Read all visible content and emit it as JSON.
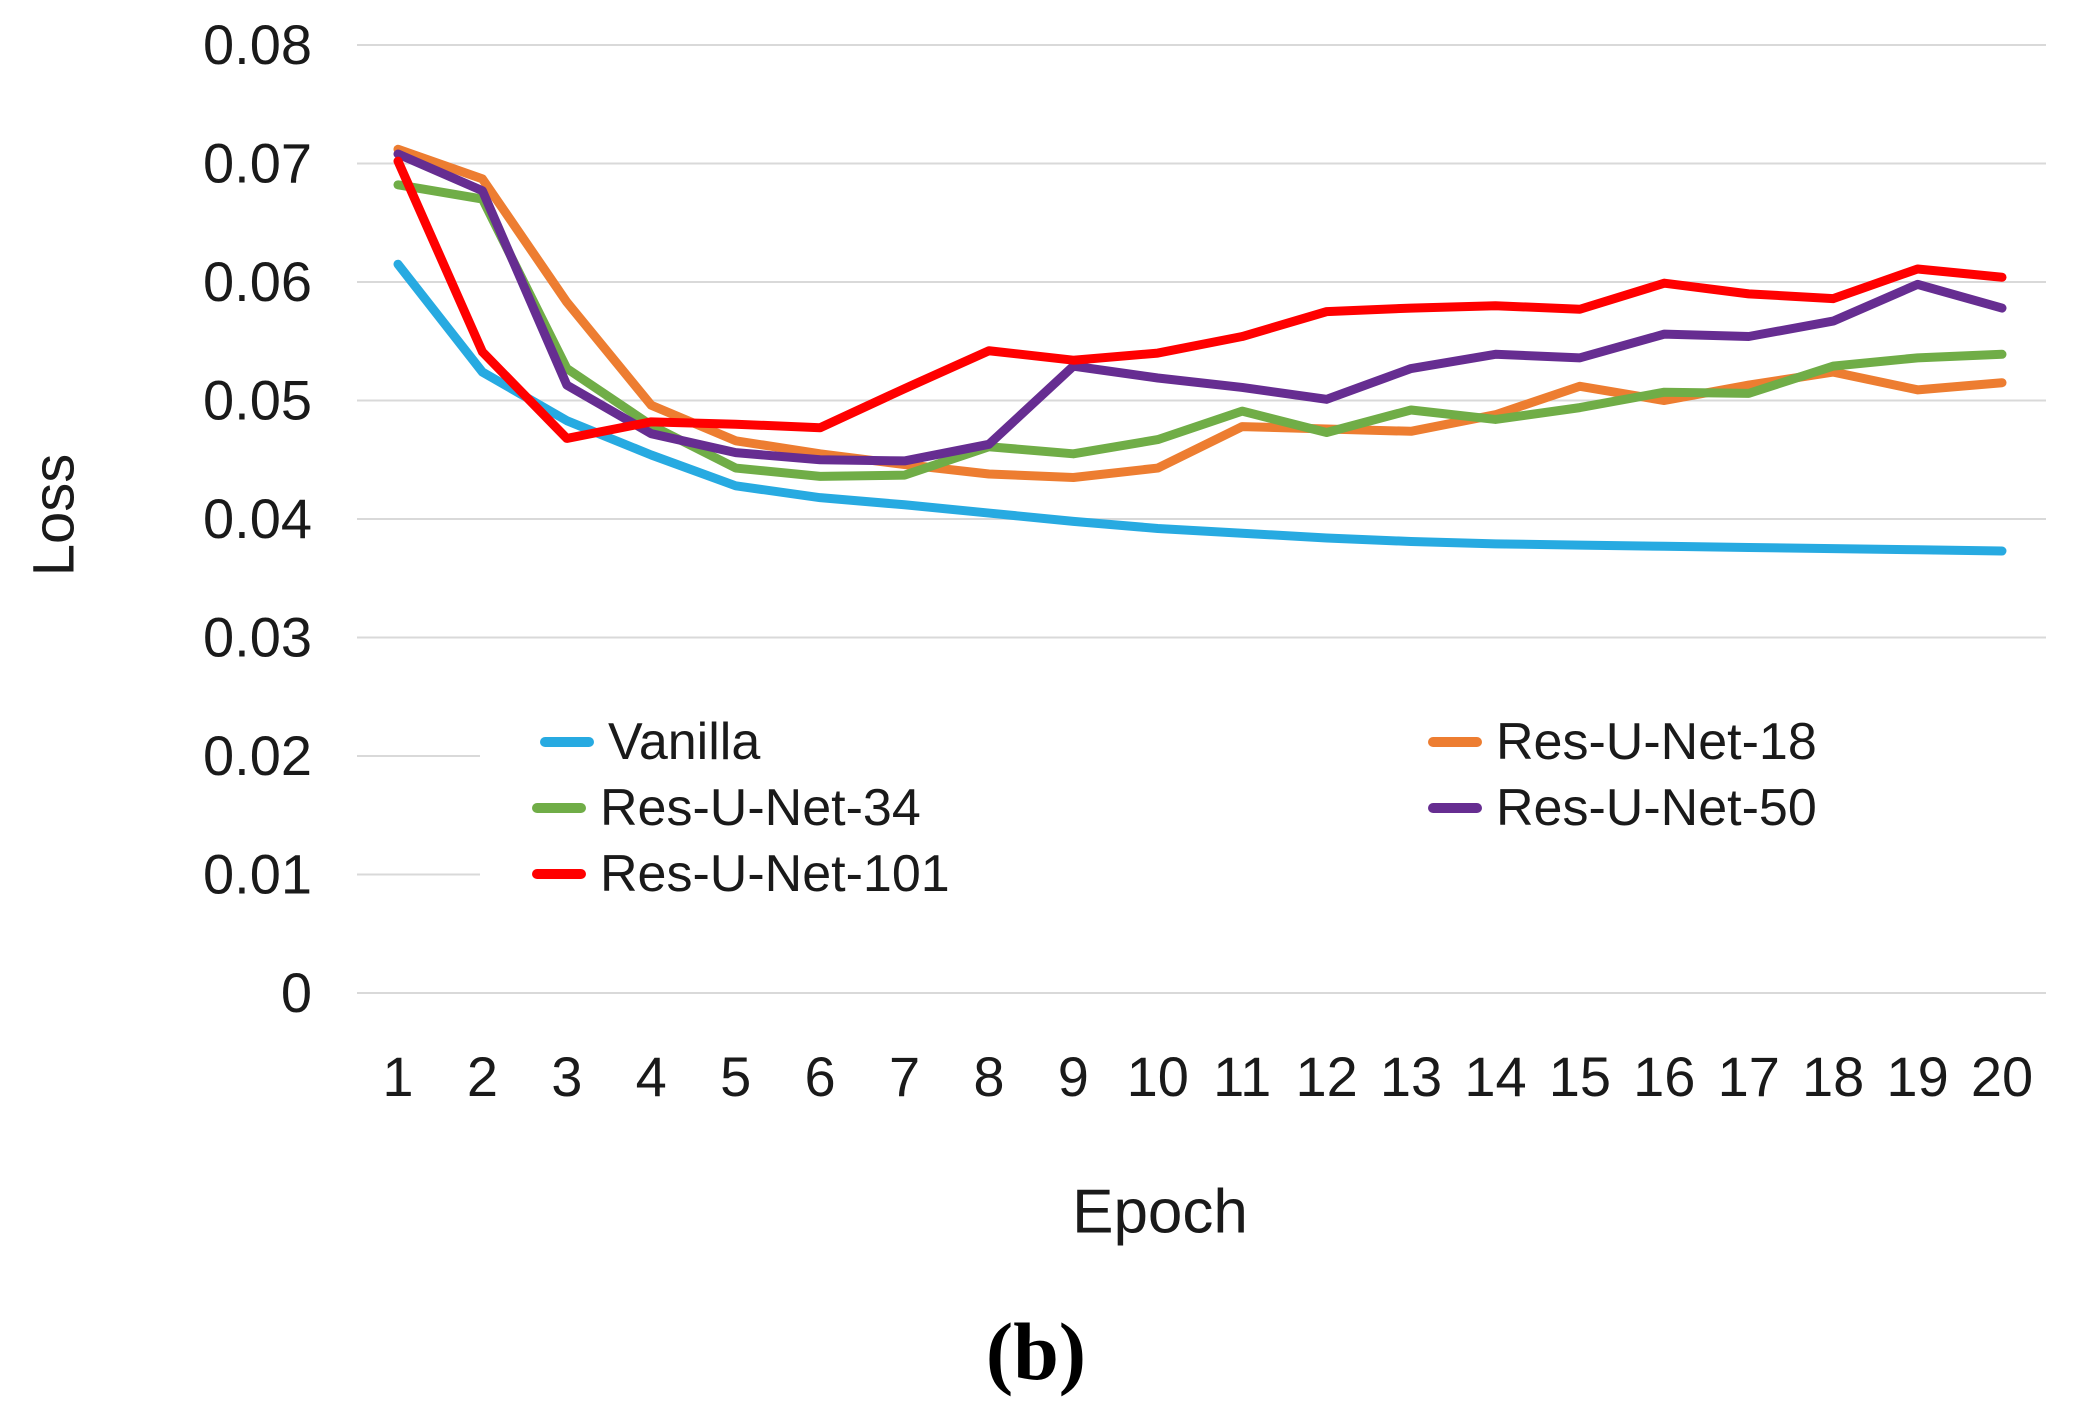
{
  "figure": {
    "caption": "(b)",
    "x_axis_title": "Epoch",
    "y_axis_title": "Loss"
  },
  "legend": {
    "items": [
      {
        "label": "Vanilla",
        "color": "#27AAE1"
      },
      {
        "label": "Res-U-Net-18",
        "color": "#ED7D31"
      },
      {
        "label": "Res-U-Net-34",
        "color": "#70AD47"
      },
      {
        "label": "Res-U-Net-50",
        "color": "#662D91"
      },
      {
        "label": "Res-U-Net-101",
        "color": "#FF0000"
      }
    ]
  },
  "chart_data": {
    "type": "line",
    "title": "",
    "xlabel": "Epoch",
    "ylabel": "Loss",
    "x": [
      1,
      2,
      3,
      4,
      5,
      6,
      7,
      8,
      9,
      10,
      11,
      12,
      13,
      14,
      15,
      16,
      17,
      18,
      19,
      20
    ],
    "x_tick_labels": [
      "1",
      "2",
      "3",
      "4",
      "5",
      "6",
      "7",
      "8",
      "9",
      "10",
      "11",
      "12",
      "13",
      "14",
      "15",
      "16",
      "17",
      "18",
      "19",
      "20"
    ],
    "ylim": [
      0,
      0.08
    ],
    "y_ticks": [
      0,
      0.01,
      0.02,
      0.03,
      0.04,
      0.05,
      0.06,
      0.07,
      0.08
    ],
    "y_tick_labels": [
      "0",
      "0.01",
      "0.02",
      "0.03",
      "0.04",
      "0.05",
      "0.06",
      "0.07",
      "0.08"
    ],
    "grid": "horizontal gridlines only, light gray",
    "gridline_color": "#D9D9D9",
    "legend_position": "inside plot, lower center, 2 columns, white background",
    "series": [
      {
        "name": "Vanilla",
        "color": "#27AAE1",
        "values": [
          0.0615,
          0.0524,
          0.0483,
          0.0454,
          0.0428,
          0.0418,
          0.0412,
          0.0405,
          0.0398,
          0.0392,
          0.0388,
          0.0384,
          0.0381,
          0.0379,
          0.0378,
          0.0377,
          0.0376,
          0.0375,
          0.0374,
          0.0373
        ]
      },
      {
        "name": "Res-U-Net-18",
        "color": "#ED7D31",
        "values": [
          0.0712,
          0.0687,
          0.0583,
          0.0496,
          0.0466,
          0.0455,
          0.0446,
          0.0438,
          0.0435,
          0.0443,
          0.0478,
          0.0476,
          0.0474,
          0.0488,
          0.0512,
          0.05,
          0.0513,
          0.0524,
          0.0509,
          0.0515
        ]
      },
      {
        "name": "Res-U-Net-34",
        "color": "#70AD47",
        "values": [
          0.0682,
          0.067,
          0.0527,
          0.0479,
          0.0443,
          0.0436,
          0.0437,
          0.0461,
          0.0455,
          0.0467,
          0.0491,
          0.0473,
          0.0492,
          0.0484,
          0.0494,
          0.0507,
          0.0506,
          0.0529,
          0.0536,
          0.0539
        ]
      },
      {
        "name": "Res-U-Net-50",
        "color": "#662D91",
        "values": [
          0.0708,
          0.0677,
          0.0513,
          0.0472,
          0.0456,
          0.045,
          0.0449,
          0.0463,
          0.0529,
          0.0519,
          0.0511,
          0.0501,
          0.0527,
          0.0539,
          0.0536,
          0.0556,
          0.0554,
          0.0567,
          0.0598,
          0.0578
        ]
      },
      {
        "name": "Res-U-Net-101",
        "color": "#FF0000",
        "values": [
          0.0702,
          0.0541,
          0.0468,
          0.0482,
          0.048,
          0.0477,
          0.051,
          0.0542,
          0.0534,
          0.054,
          0.0554,
          0.0575,
          0.0578,
          0.058,
          0.0577,
          0.0599,
          0.059,
          0.0586,
          0.0611,
          0.0604
        ]
      }
    ]
  }
}
